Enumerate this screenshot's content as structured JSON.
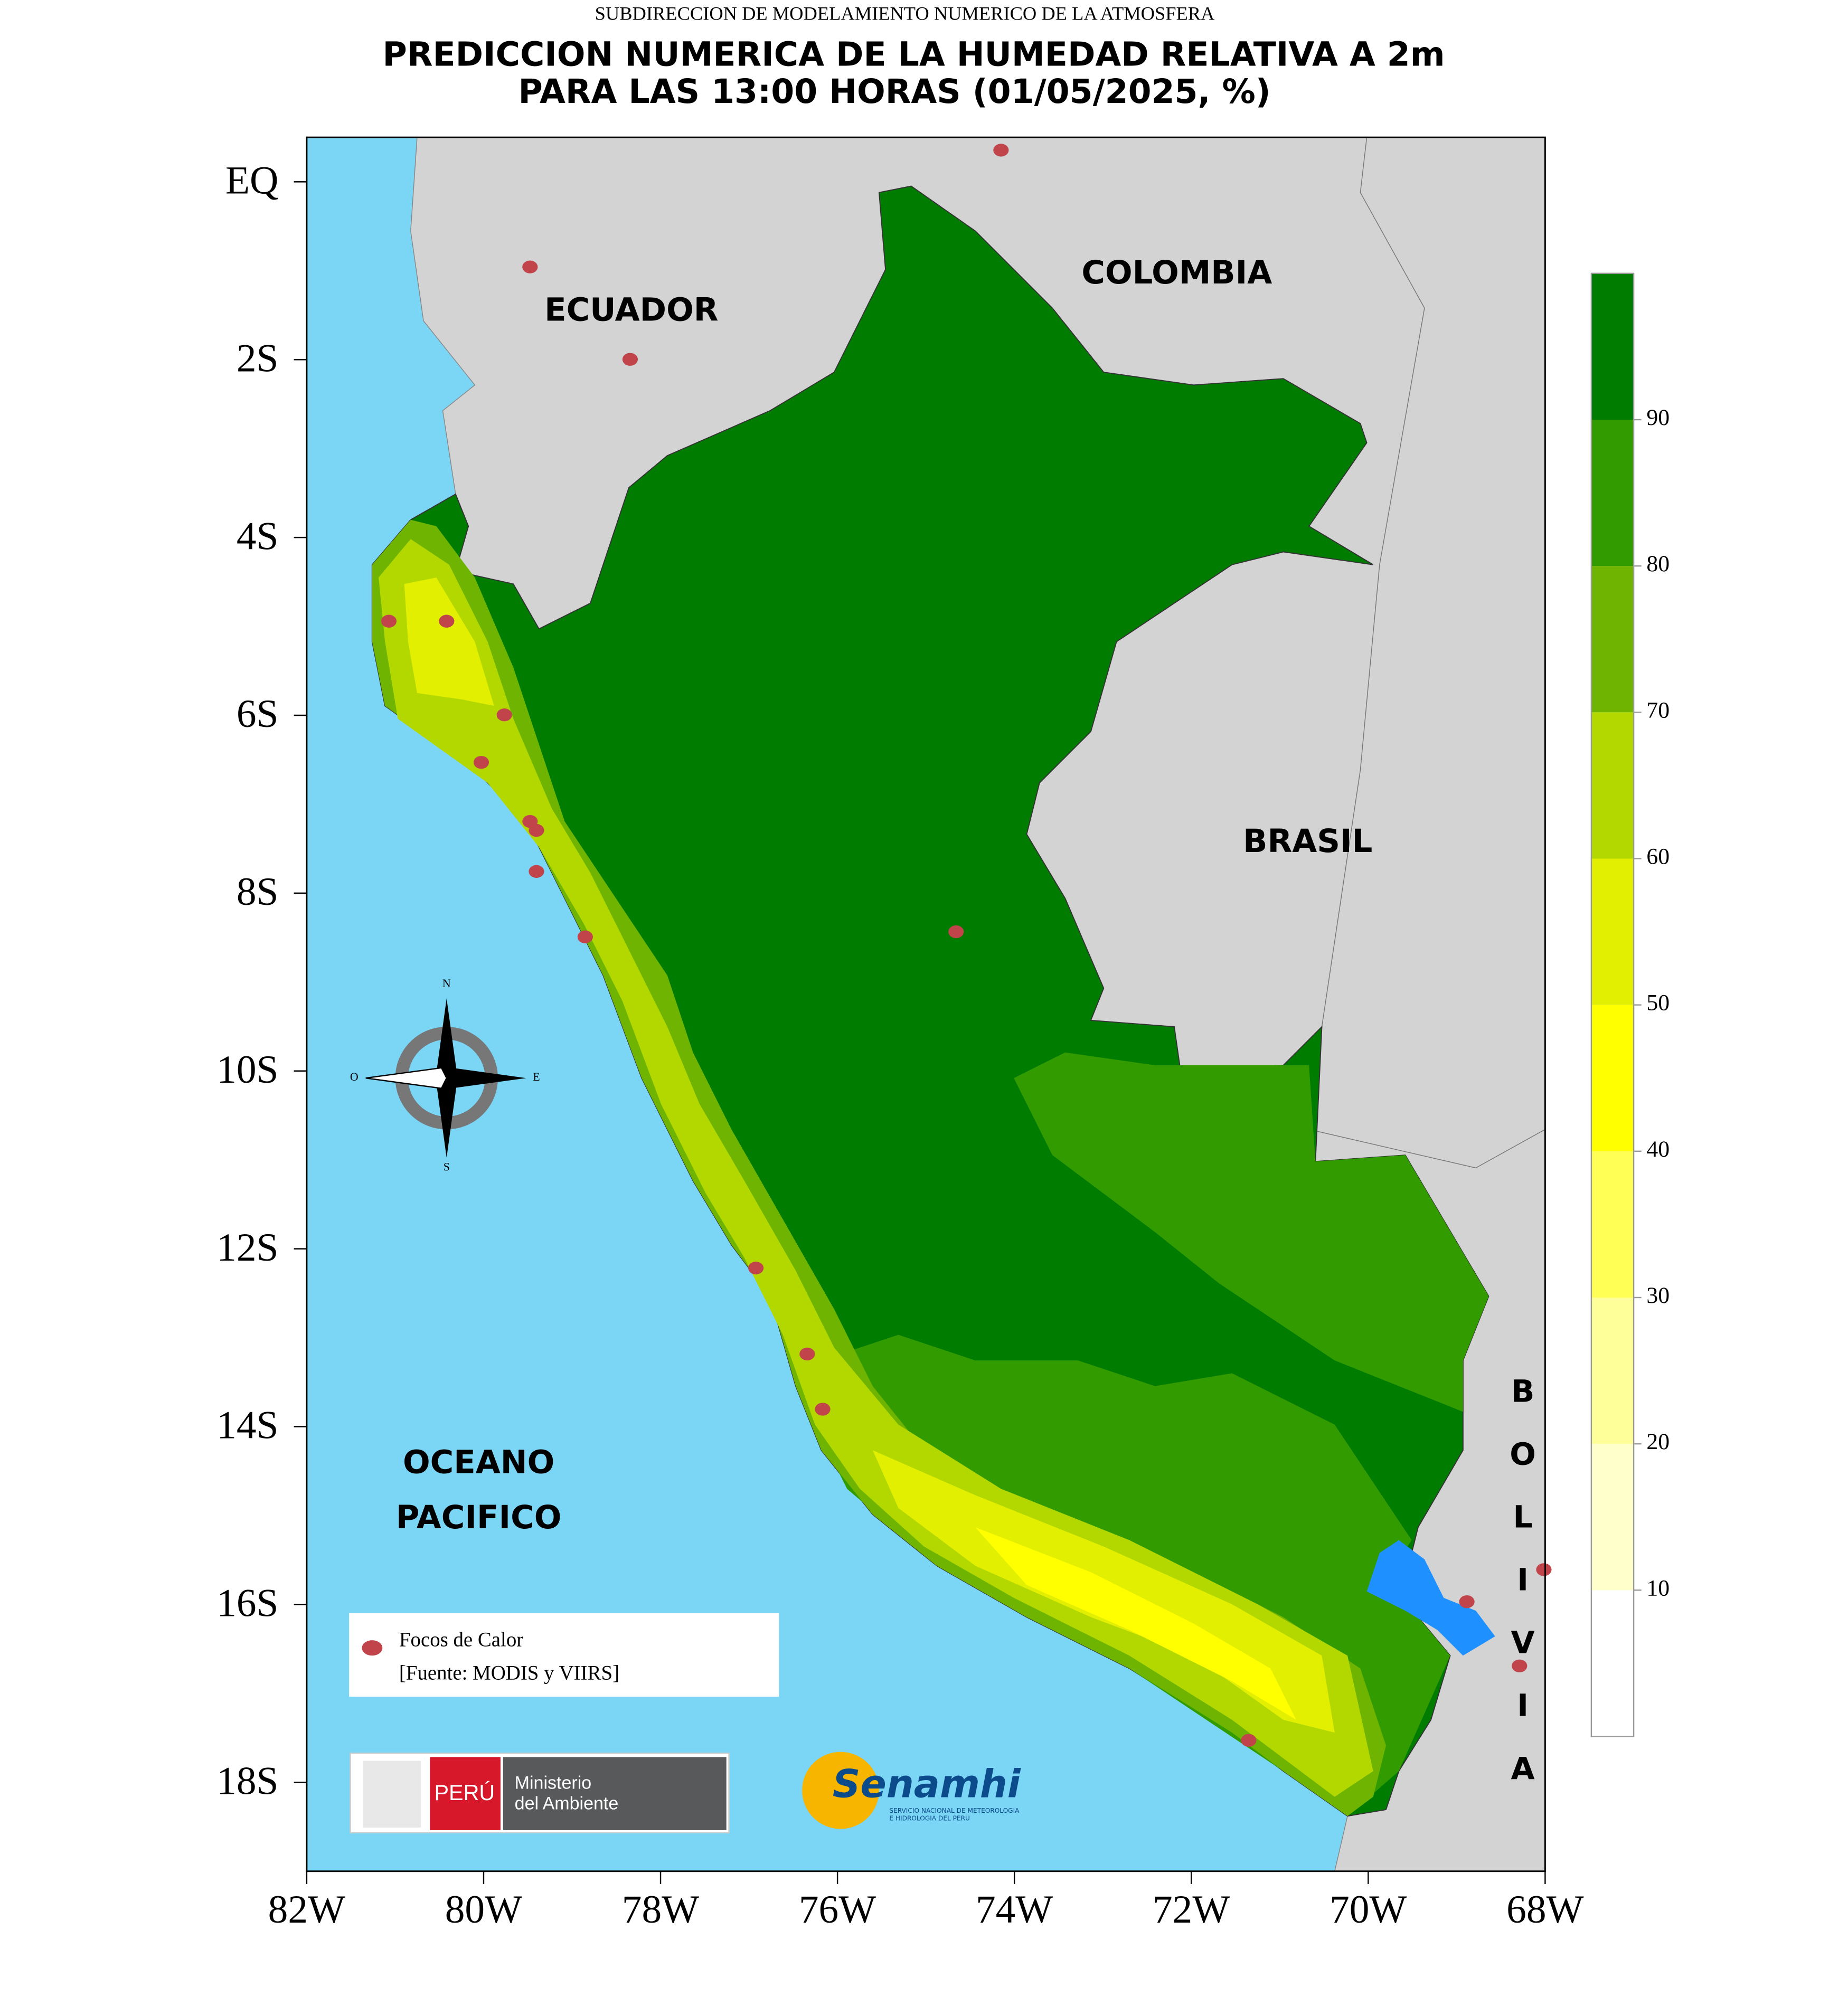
{
  "header": {
    "agency": "SUBDIRECCION DE MODELAMIENTO NUMERICO DE LA ATMOSFERA",
    "title_lines": [
      "PREDICCION NUMERICA DE LA HUMEDAD RELATIVA A 2m",
      "PARA LAS 13:00 HORAS (01/05/2025, %)"
    ]
  },
  "map": {
    "xlim": [
      -82,
      -68
    ],
    "ylim": [
      -19,
      0.5
    ],
    "xticks": [
      {
        "value": -82,
        "label": "82W"
      },
      {
        "value": -80,
        "label": "80W"
      },
      {
        "value": -78,
        "label": "78W"
      },
      {
        "value": -76,
        "label": "76W"
      },
      {
        "value": -74,
        "label": "74W"
      },
      {
        "value": -72,
        "label": "72W"
      },
      {
        "value": -70,
        "label": "70W"
      },
      {
        "value": -68,
        "label": "68W"
      }
    ],
    "yticks": [
      {
        "value": 0,
        "label": "EQ"
      },
      {
        "value": -2,
        "label": "2S"
      },
      {
        "value": -4,
        "label": "4S"
      },
      {
        "value": -6,
        "label": "6S"
      },
      {
        "value": -8,
        "label": "8S"
      },
      {
        "value": -10,
        "label": "10S"
      },
      {
        "value": -12,
        "label": "12S"
      },
      {
        "value": -14,
        "label": "14S"
      },
      {
        "value": -16,
        "label": "16S"
      },
      {
        "value": -18,
        "label": "18S"
      }
    ],
    "labels": {
      "ecuador": "ECUADOR",
      "colombia": "COLOMBIA",
      "brasil": "BRASIL",
      "bolivia": "BOLIVIA",
      "ocean": [
        "OCEANO",
        "PACIFICO"
      ]
    },
    "compass": {
      "n": "N",
      "e": "E",
      "s": "S",
      "o": "O"
    },
    "legend": [
      "Focos de Calor",
      "[Fuente: MODIS y VIIRS]"
    ]
  },
  "colorbar": {
    "levels": [
      0,
      10,
      20,
      30,
      40,
      50,
      60,
      70,
      80,
      90,
      100
    ],
    "colors": [
      "#ffffff",
      "#ffffcc",
      "#ffff99",
      "#ffff55",
      "#ffff00",
      "#e2ef00",
      "#b2d800",
      "#6eb400",
      "#329b00",
      "#007c00"
    ]
  },
  "logos": {
    "country": "PERÚ",
    "ministry": [
      "Ministerio",
      "del Ambiente"
    ],
    "senamhi": "Senamhi",
    "senamhi_sub": [
      "SERVICIO NACIONAL DE METEOROLOGIA",
      "E HIDROLOGIA DEL PERU"
    ]
  }
}
